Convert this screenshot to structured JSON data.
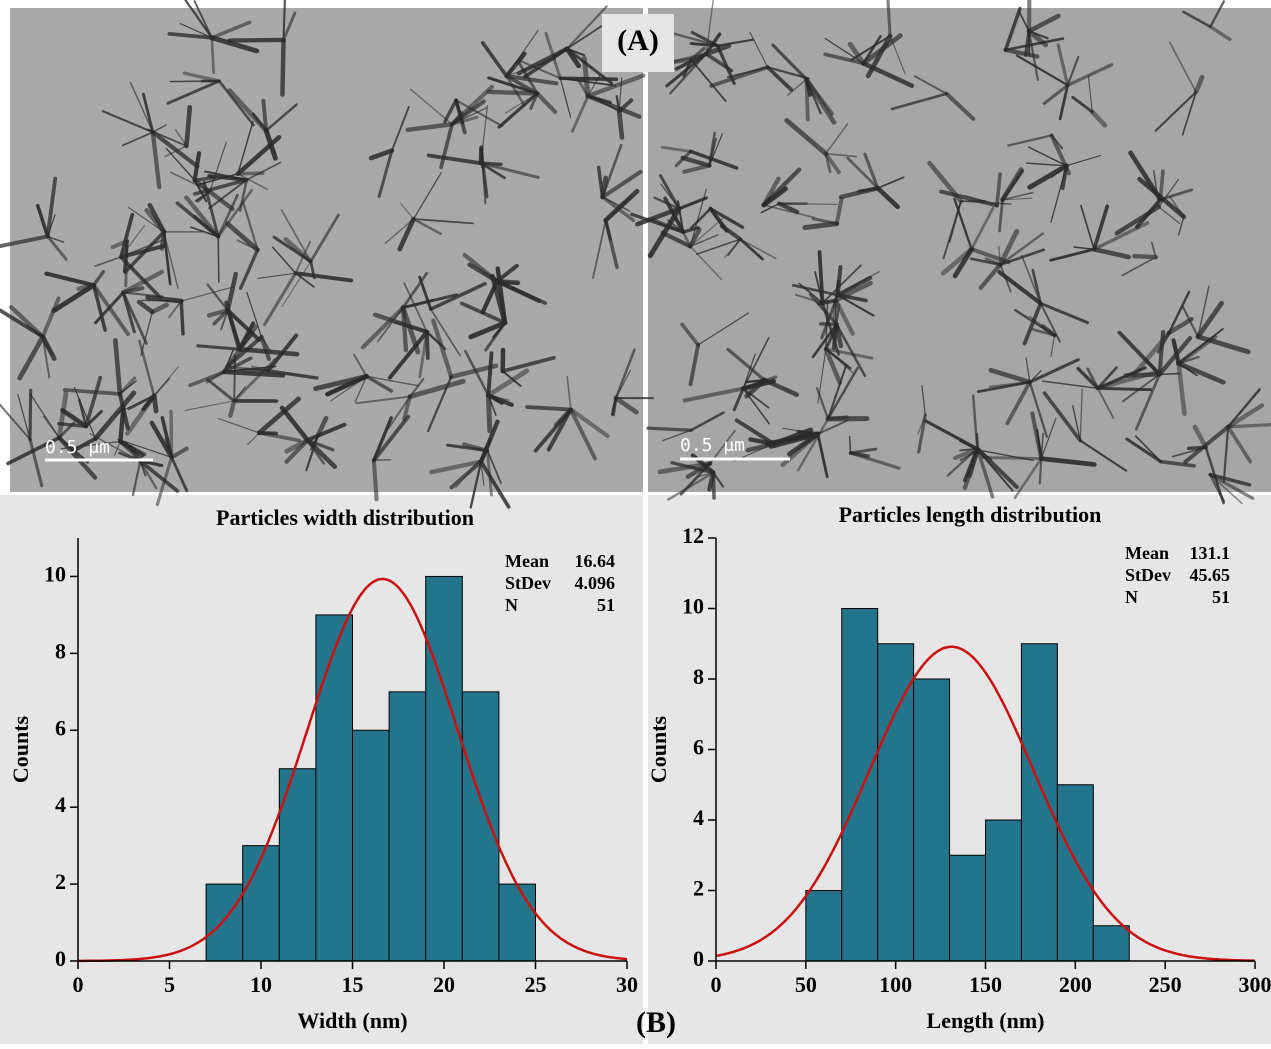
{
  "panel_labels": [
    "(A)",
    "(B)"
  ],
  "scale_bars": [
    "0.5 μm",
    "0.5 μm"
  ],
  "chart_data": [
    {
      "type": "histogram",
      "title": "Particles width distribution",
      "x_label": "Width (nm)",
      "y_label": "Counts",
      "bins": [
        7,
        9,
        11,
        13,
        15,
        17,
        19,
        21,
        23,
        25
      ],
      "values": [
        2,
        3,
        5,
        9,
        6,
        7,
        10,
        7,
        2
      ],
      "color": "#23758b",
      "fit_color": "#cc1010",
      "xlim": [
        0,
        30
      ],
      "xticks": [
        0,
        5,
        10,
        15,
        20,
        25,
        30
      ],
      "ylim": [
        0,
        11
      ],
      "yticks": [
        0,
        2,
        4,
        6,
        8,
        10
      ],
      "stats": [
        {
          "label": "Mean",
          "value": 16.64
        },
        {
          "label": "StDev",
          "value": 4.096
        },
        {
          "label": "N",
          "value": 51
        }
      ]
    },
    {
      "type": "histogram",
      "title": "Particles length distribution",
      "x_label": "Length (nm)",
      "y_label": "Counts",
      "bins": [
        50,
        70,
        90,
        110,
        130,
        150,
        170,
        190,
        210,
        230
      ],
      "values": [
        2,
        10,
        9,
        8,
        3,
        4,
        9,
        5,
        1
      ],
      "color": "#23758b",
      "fit_color": "#cc1010",
      "xlim": [
        0,
        300
      ],
      "xticks": [
        0,
        50,
        100,
        150,
        200,
        250,
        300
      ],
      "ylim": [
        0,
        12
      ],
      "yticks": [
        0,
        2,
        4,
        6,
        8,
        10,
        12
      ],
      "stats": [
        {
          "label": "Mean",
          "value": 131.1
        },
        {
          "label": "StDev",
          "value": 45.65
        },
        {
          "label": "N",
          "value": 51
        }
      ]
    }
  ]
}
